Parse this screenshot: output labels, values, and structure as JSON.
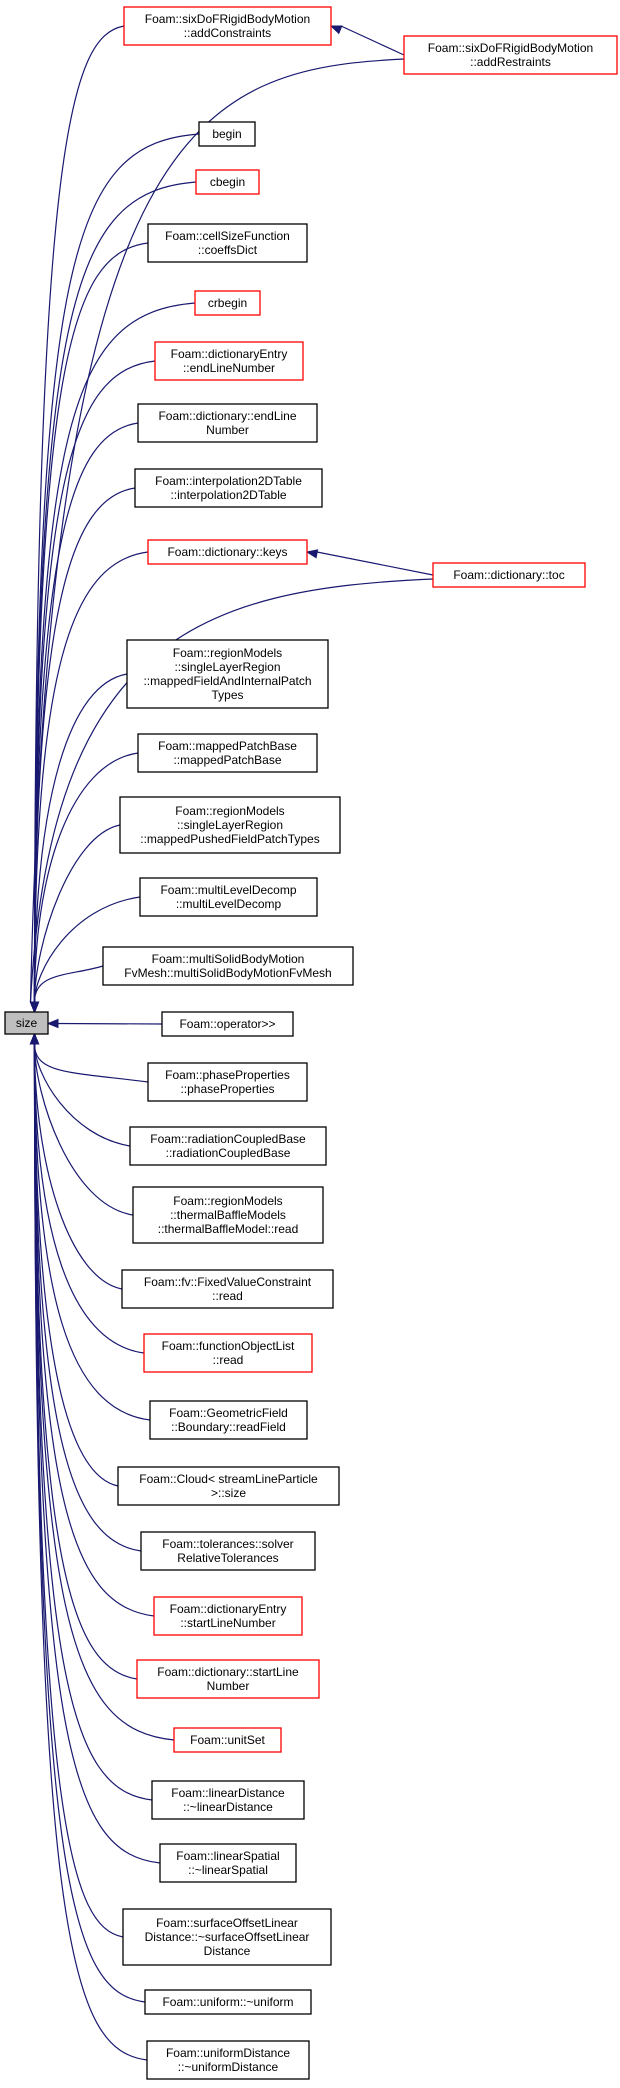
{
  "colors": {
    "edge": "#191970",
    "border": "#000000",
    "incomplete_border": "#ff0000",
    "root_fill": "#bfbfbf"
  },
  "root": {
    "label": "size"
  },
  "callers": [
    {
      "id": "n1",
      "lines": [
        "Foam::sixDoFRigidBodyMotion",
        "::addConstraints"
      ],
      "incomplete": true
    },
    {
      "id": "n2",
      "lines": [
        "begin"
      ],
      "incomplete": false
    },
    {
      "id": "n3",
      "lines": [
        "cbegin"
      ],
      "incomplete": true
    },
    {
      "id": "n4",
      "lines": [
        "Foam::cellSizeFunction",
        "::coeffsDict"
      ],
      "incomplete": false
    },
    {
      "id": "n5",
      "lines": [
        "crbegin"
      ],
      "incomplete": true
    },
    {
      "id": "n6",
      "lines": [
        "Foam::dictionaryEntry",
        "::endLineNumber"
      ],
      "incomplete": true
    },
    {
      "id": "n7",
      "lines": [
        "Foam::dictionary::endLine",
        "Number"
      ],
      "incomplete": false
    },
    {
      "id": "n8",
      "lines": [
        "Foam::interpolation2DTable",
        "::interpolation2DTable"
      ],
      "incomplete": false
    },
    {
      "id": "n9",
      "lines": [
        "Foam::dictionary::keys"
      ],
      "incomplete": true
    },
    {
      "id": "n10",
      "lines": [
        "Foam::regionModels",
        "::singleLayerRegion",
        "::mappedFieldAndInternalPatch",
        "Types"
      ],
      "incomplete": false
    },
    {
      "id": "n11",
      "lines": [
        "Foam::mappedPatchBase",
        "::mappedPatchBase"
      ],
      "incomplete": false
    },
    {
      "id": "n12",
      "lines": [
        "Foam::regionModels",
        "::singleLayerRegion",
        "::mappedPushedFieldPatchTypes"
      ],
      "incomplete": false
    },
    {
      "id": "n13",
      "lines": [
        "Foam::multiLevelDecomp",
        "::multiLevelDecomp"
      ],
      "incomplete": false
    },
    {
      "id": "n14",
      "lines": [
        "Foam::multiSolidBodyMotion",
        "FvMesh::multiSolidBodyMotionFvMesh"
      ],
      "incomplete": false
    },
    {
      "id": "n15",
      "lines": [
        "Foam::operator>>"
      ],
      "incomplete": false
    },
    {
      "id": "n16",
      "lines": [
        "Foam::phaseProperties",
        "::phaseProperties"
      ],
      "incomplete": false
    },
    {
      "id": "n17",
      "lines": [
        "Foam::radiationCoupledBase",
        "::radiationCoupledBase"
      ],
      "incomplete": false
    },
    {
      "id": "n18",
      "lines": [
        "Foam::regionModels",
        "::thermalBaffleModels",
        "::thermalBaffleModel::read"
      ],
      "incomplete": false
    },
    {
      "id": "n19",
      "lines": [
        "Foam::fv::FixedValueConstraint",
        "::read"
      ],
      "incomplete": false
    },
    {
      "id": "n20",
      "lines": [
        "Foam::functionObjectList",
        "::read"
      ],
      "incomplete": true
    },
    {
      "id": "n21",
      "lines": [
        "Foam::GeometricField",
        "::Boundary::readField"
      ],
      "incomplete": false
    },
    {
      "id": "n22",
      "lines": [
        "Foam::Cloud< streamLineParticle",
        ">::size"
      ],
      "incomplete": false
    },
    {
      "id": "n23",
      "lines": [
        "Foam::tolerances::solver",
        "RelativeTolerances"
      ],
      "incomplete": false
    },
    {
      "id": "n24",
      "lines": [
        "Foam::dictionaryEntry",
        "::startLineNumber"
      ],
      "incomplete": true
    },
    {
      "id": "n25",
      "lines": [
        "Foam::dictionary::startLine",
        "Number"
      ],
      "incomplete": true
    },
    {
      "id": "n26",
      "lines": [
        "Foam::unitSet"
      ],
      "incomplete": true
    },
    {
      "id": "n27",
      "lines": [
        "Foam::linearDistance",
        "::~linearDistance"
      ],
      "incomplete": false
    },
    {
      "id": "n28",
      "lines": [
        "Foam::linearSpatial",
        "::~linearSpatial"
      ],
      "incomplete": false
    },
    {
      "id": "n29",
      "lines": [
        "Foam::surfaceOffsetLinear",
        "Distance::~surfaceOffsetLinear",
        "Distance"
      ],
      "incomplete": false
    },
    {
      "id": "n30",
      "lines": [
        "Foam::uniform::~uniform"
      ],
      "incomplete": false
    },
    {
      "id": "n31",
      "lines": [
        "Foam::uniformDistance",
        "::~uniformDistance"
      ],
      "incomplete": false
    }
  ],
  "second_level": [
    {
      "id": "s1",
      "lines": [
        "Foam::sixDoFRigidBodyMotion",
        "::addRestraints"
      ],
      "incomplete": true,
      "links": [
        "n1"
      ]
    },
    {
      "id": "s2",
      "lines": [
        "Foam::dictionary::toc"
      ],
      "incomplete": true,
      "links": [
        "n9"
      ]
    }
  ]
}
